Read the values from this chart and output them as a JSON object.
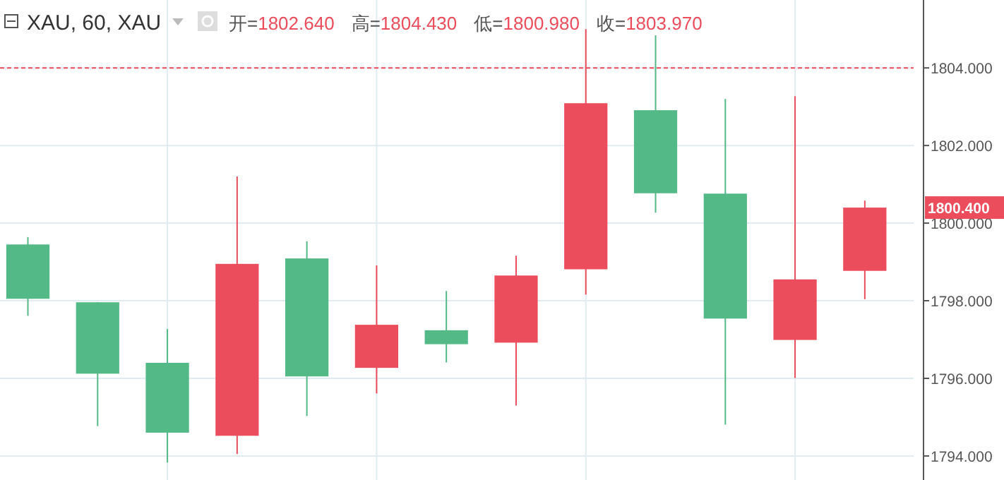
{
  "chart_data": {
    "type": "candlestick",
    "title": "XAU, 60, XAU",
    "annotations": [
      "开=1802.640",
      "高=1804.430",
      "低=1800.980",
      "收=1803.970",
      "1800.400"
    ],
    "categories": [
      null,
      null,
      null,
      null,
      null,
      null,
      null,
      null,
      null,
      null,
      null,
      null,
      null
    ],
    "ohlc": [
      [
        1799.45,
        1799.64,
        1797.61,
        1798.05
      ],
      [
        1797.96,
        1797.96,
        1794.77,
        1796.12
      ],
      [
        1796.4,
        1797.27,
        1793.83,
        1794.6
      ],
      [
        1794.52,
        1801.2,
        1794.05,
        1798.95
      ],
      [
        1799.09,
        1799.53,
        1795.03,
        1796.05
      ],
      [
        1796.27,
        1798.91,
        1795.61,
        1797.38
      ],
      [
        1797.24,
        1798.25,
        1796.41,
        1796.88
      ],
      [
        1796.92,
        1799.16,
        1795.3,
        1798.65
      ],
      [
        1798.81,
        1805.0,
        1798.16,
        1803.09
      ],
      [
        1802.91,
        1804.84,
        1800.27,
        1800.77
      ],
      [
        1800.76,
        1803.2,
        1794.81,
        1797.54
      ],
      [
        1796.99,
        1803.27,
        1796.01,
        1798.55
      ],
      [
        1798.77,
        1800.58,
        1798.04,
        1800.4
      ]
    ],
    "colors": [
      "#53b987",
      "#53b987",
      "#53b987",
      "#eb4d5c",
      "#53b987",
      "#eb4d5c",
      "#53b987",
      "#eb4d5c",
      "#eb4d5c",
      "#53b987",
      "#53b987",
      "#eb4d5c",
      "#eb4d5c"
    ],
    "ylim": [
      1793.38,
      1805.75
    ],
    "yticks": [
      {
        "value": 1794,
        "label": "1794.000"
      },
      {
        "value": 1796,
        "label": "1796.000"
      },
      {
        "value": 1798,
        "label": "1798.000"
      },
      {
        "value": 1800,
        "label": "1800.000"
      },
      {
        "value": 1802,
        "label": "1802.000"
      },
      {
        "value": 1804,
        "label": "1804.000"
      }
    ],
    "grid": true,
    "ref_lines": [
      {
        "axis": "y",
        "value": 1804,
        "color": "#eb4d5c",
        "line_style": "dashed"
      }
    ]
  }
}
